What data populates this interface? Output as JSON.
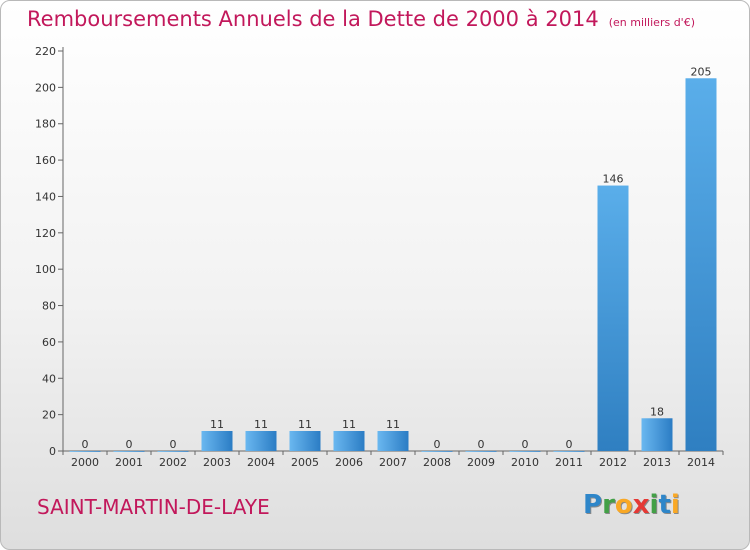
{
  "header": {
    "title": "Remboursements Annuels de la Dette de 2000 à 2014",
    "subtitle": "(en milliers d'€)"
  },
  "footer": {
    "commune": "SAINT-MARTIN-DE-LAYE",
    "logo_letters": [
      {
        "char": "P",
        "color": "#2e86c9"
      },
      {
        "char": "r",
        "color": "#43a047"
      },
      {
        "char": "o",
        "color": "#f9a825"
      },
      {
        "char": "x",
        "color": "#e53935"
      },
      {
        "char": "i",
        "color": "#43a047"
      },
      {
        "char": "t",
        "color": "#2e86c9"
      },
      {
        "char": "i",
        "color": "#f9a825"
      }
    ]
  },
  "chart_data": {
    "type": "bar",
    "title": "Remboursements Annuels de la Dette de 2000 à 2014",
    "subtitle": "(en milliers d'€)",
    "categories": [
      "2000",
      "2001",
      "2002",
      "2003",
      "2004",
      "2005",
      "2006",
      "2007",
      "2008",
      "2009",
      "2010",
      "2011",
      "2012",
      "2013",
      "2014"
    ],
    "values": [
      0,
      0,
      0,
      11,
      11,
      11,
      11,
      11,
      0,
      0,
      0,
      0,
      146,
      18,
      205
    ],
    "ylim": [
      0,
      220
    ],
    "yticks": [
      0,
      20,
      40,
      60,
      80,
      100,
      120,
      140,
      160,
      180,
      200,
      220
    ],
    "grid": false,
    "bar_color": "#4a9ee0"
  }
}
